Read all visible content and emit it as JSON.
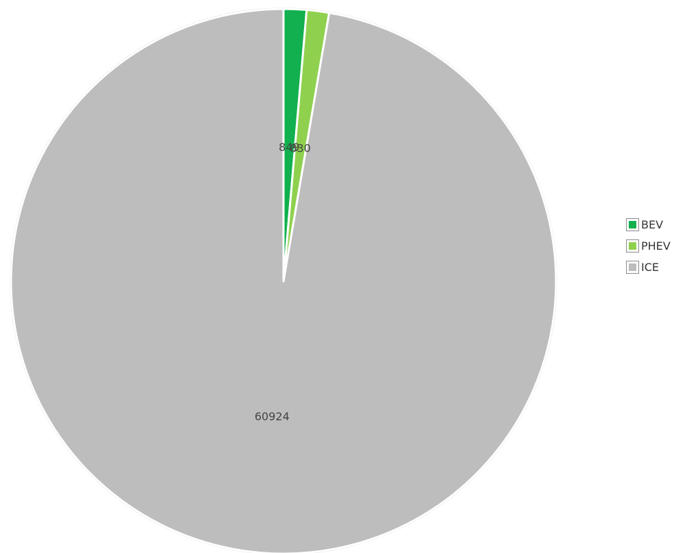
{
  "chart_data": {
    "type": "pie",
    "categories": [
      "BEV",
      "PHEV",
      "ICE"
    ],
    "values": [
      849,
      830,
      60924
    ],
    "colors": [
      "#12b04e",
      "#8fd14f",
      "#bdbdbd"
    ],
    "data_labels": [
      "849",
      "830",
      "60924"
    ],
    "start_angle_deg": 0,
    "direction": "clockwise",
    "legend_position": "right"
  }
}
